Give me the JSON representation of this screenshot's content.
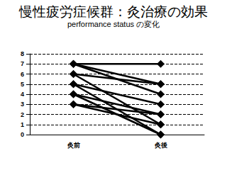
{
  "chart_data": {
    "type": "line",
    "title": "慢性疲労症候群：灸治療の効果",
    "subtitle": "performance status の変化",
    "categories": [
      "灸前",
      "灸後"
    ],
    "color": "#000000",
    "marker": "diamond",
    "series": [
      {
        "values": [
          7,
          7
        ]
      },
      {
        "values": [
          7,
          5
        ]
      },
      {
        "values": [
          7,
          4
        ]
      },
      {
        "values": [
          6,
          5
        ]
      },
      {
        "values": [
          6,
          1
        ]
      },
      {
        "values": [
          5,
          3
        ]
      },
      {
        "values": [
          5,
          0
        ]
      },
      {
        "values": [
          4,
          2
        ]
      },
      {
        "values": [
          4,
          0
        ]
      },
      {
        "values": [
          3,
          1
        ]
      },
      {
        "values": [
          3,
          2
        ]
      }
    ],
    "ylim": [
      0,
      8
    ],
    "yticks": [
      0,
      1,
      2,
      3,
      4,
      5,
      6,
      7,
      8
    ],
    "grid": true
  }
}
